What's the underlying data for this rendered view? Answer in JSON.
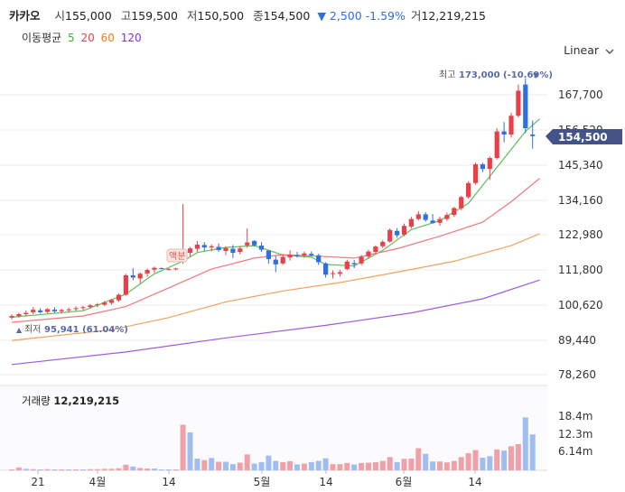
{
  "header": {
    "name": "카카오",
    "open_label": "시",
    "open": "155,000",
    "high_label": "고",
    "high": "159,500",
    "low_label": "저",
    "low": "150,500",
    "close_label": "종",
    "close": "154,500",
    "change": "▼ 2,500",
    "change_pct": "-1.59%",
    "volume_label": "거",
    "volume": "12,219,215"
  },
  "moving_avg": {
    "label": "이동평균",
    "items": [
      {
        "label": "5",
        "color": "#3cae3c"
      },
      {
        "label": "20",
        "color": "#e8404a"
      },
      {
        "label": "60",
        "color": "#ef7d22"
      },
      {
        "label": "120",
        "color": "#8a2be2"
      }
    ]
  },
  "scale_toggle": {
    "label": "Linear",
    "icon": "chevron-down-icon"
  },
  "price_axis": {
    "ticks": [
      "167,700",
      "156,520",
      "145,340",
      "134,160",
      "122,980",
      "111,800",
      "100,620",
      "89,440",
      "78,260"
    ]
  },
  "current_price_tag": "154,500",
  "max_annotation": {
    "label": "최고",
    "value": "173,000 (-10.69%)"
  },
  "min_annotation": {
    "label": "최저",
    "value": "95,941 (61.04%)"
  },
  "badge": {
    "text": "액분"
  },
  "volume_panel": {
    "label": "거래량",
    "value": "12,219,215",
    "ticks": [
      "18.4m",
      "12.3m",
      "6.14m"
    ]
  },
  "x_axis": {
    "ticks": [
      "21",
      "4월",
      "14",
      "5월",
      "14",
      "6월",
      "14"
    ]
  },
  "colors": {
    "up": "#e8404a",
    "down": "#2f6fde",
    "up_vol": "#f0a0a8",
    "down_vol": "#9fbdf0"
  },
  "chart_data": {
    "type": "candlestick",
    "price_range": [
      78260,
      173000
    ],
    "candles": [
      [
        96500,
        97600,
        95941,
        97000
      ],
      [
        97000,
        98000,
        96500,
        97600
      ],
      [
        97600,
        98800,
        97000,
        98000
      ],
      [
        98200,
        99800,
        97600,
        99000
      ],
      [
        98800,
        99500,
        97800,
        98200
      ],
      [
        98300,
        99500,
        97900,
        99200
      ],
      [
        99000,
        99800,
        98000,
        98500
      ],
      [
        98500,
        99300,
        97800,
        98900
      ],
      [
        98900,
        99700,
        98100,
        99100
      ],
      [
        99200,
        100100,
        98600,
        99500
      ],
      [
        99500,
        100300,
        98900,
        99800
      ],
      [
        99900,
        100800,
        99300,
        100400
      ],
      [
        100400,
        101200,
        99800,
        100700
      ],
      [
        100600,
        101800,
        100200,
        101300
      ],
      [
        101200,
        102500,
        100600,
        102100
      ],
      [
        102000,
        104200,
        101600,
        103800
      ],
      [
        103800,
        110500,
        103500,
        110000
      ],
      [
        110000,
        112300,
        108400,
        109300
      ],
      [
        109000,
        111000,
        107500,
        110500
      ],
      [
        110600,
        112200,
        109500,
        111700
      ],
      [
        111800,
        112800,
        110800,
        112400
      ],
      [
        112300,
        112500,
        111900,
        112100
      ],
      [
        112000,
        112300,
        111600,
        112000
      ],
      [
        112000,
        112400,
        111600,
        112200
      ],
      [
        115500,
        132800,
        113700,
        117500
      ],
      [
        117200,
        119100,
        116000,
        118600
      ],
      [
        118500,
        121000,
        117500,
        119800
      ],
      [
        119700,
        120600,
        117800,
        118900
      ],
      [
        118900,
        119900,
        117700,
        119300
      ],
      [
        119100,
        120200,
        117500,
        118100
      ],
      [
        117800,
        119300,
        116500,
        118700
      ],
      [
        118500,
        119700,
        115500,
        117200
      ],
      [
        117500,
        119400,
        116700,
        118600
      ],
      [
        119600,
        125000,
        118800,
        120500
      ],
      [
        121000,
        121200,
        119200,
        119600
      ],
      [
        119500,
        120600,
        117500,
        118200
      ],
      [
        117900,
        118200,
        113700,
        115200
      ],
      [
        115000,
        116200,
        111000,
        113500
      ],
      [
        113800,
        116800,
        113300,
        115900
      ],
      [
        115700,
        118000,
        114700,
        116600
      ],
      [
        116500,
        117500,
        115700,
        116100
      ],
      [
        116400,
        117600,
        115600,
        117000
      ],
      [
        116900,
        117600,
        116100,
        116400
      ],
      [
        116400,
        116900,
        113300,
        114200
      ],
      [
        113800,
        114200,
        109300,
        110200
      ],
      [
        110400,
        111600,
        109000,
        110700
      ],
      [
        110500,
        111800,
        109600,
        111000
      ],
      [
        112000,
        115000,
        111700,
        114400
      ],
      [
        113900,
        114900,
        112300,
        113500
      ],
      [
        113800,
        116500,
        113200,
        115900
      ],
      [
        116000,
        118200,
        115300,
        117600
      ],
      [
        117500,
        119600,
        116900,
        119200
      ],
      [
        119300,
        121300,
        118700,
        120700
      ],
      [
        120800,
        125000,
        120500,
        124500
      ],
      [
        124200,
        125100,
        122000,
        122800
      ],
      [
        123000,
        126500,
        122500,
        125800
      ],
      [
        125600,
        128700,
        125000,
        128000
      ],
      [
        128000,
        130500,
        127500,
        129500
      ],
      [
        129500,
        130200,
        127100,
        127700
      ],
      [
        127500,
        129600,
        126500,
        126700
      ],
      [
        126800,
        128800,
        125800,
        128000
      ],
      [
        128000,
        130000,
        127400,
        129300
      ],
      [
        129300,
        131900,
        128600,
        131500
      ],
      [
        131400,
        135400,
        130800,
        135000
      ],
      [
        135000,
        140000,
        134500,
        139500
      ],
      [
        139500,
        146000,
        139000,
        145500
      ],
      [
        145500,
        146000,
        143000,
        144000
      ],
      [
        144000,
        148000,
        140500,
        147500
      ],
      [
        147500,
        157000,
        147000,
        156000
      ],
      [
        156000,
        159000,
        152500,
        155000
      ],
      [
        155000,
        162000,
        154000,
        161000
      ],
      [
        161000,
        171000,
        160500,
        169000
      ],
      [
        171000,
        173000,
        155500,
        157000
      ],
      [
        155000,
        159500,
        150500,
        154500
      ]
    ],
    "volume": [
      [
        0.3,
        1
      ],
      [
        1.0,
        1
      ],
      [
        0.5,
        0
      ],
      [
        0.4,
        1
      ],
      [
        0.3,
        0
      ],
      [
        0.4,
        1
      ],
      [
        0.3,
        0
      ],
      [
        0.3,
        1
      ],
      [
        0.3,
        0
      ],
      [
        0.3,
        1
      ],
      [
        0.3,
        0
      ],
      [
        0.4,
        1
      ],
      [
        0.4,
        1
      ],
      [
        0.5,
        1
      ],
      [
        0.5,
        1
      ],
      [
        0.7,
        1
      ],
      [
        1.9,
        1
      ],
      [
        1.3,
        0
      ],
      [
        0.8,
        1
      ],
      [
        0.6,
        1
      ],
      [
        0.6,
        0
      ],
      [
        0.3,
        0
      ],
      [
        0.2,
        0
      ],
      [
        0.2,
        1
      ],
      [
        15.5,
        1
      ],
      [
        12.9,
        0
      ],
      [
        4.0,
        0
      ],
      [
        3.5,
        1
      ],
      [
        4.2,
        0
      ],
      [
        2.9,
        1
      ],
      [
        2.9,
        0
      ],
      [
        2.1,
        0
      ],
      [
        2.6,
        1
      ],
      [
        5.4,
        1
      ],
      [
        2.3,
        0
      ],
      [
        2.8,
        0
      ],
      [
        5.0,
        0
      ],
      [
        3.2,
        0
      ],
      [
        2.8,
        1
      ],
      [
        3.1,
        1
      ],
      [
        2.0,
        0
      ],
      [
        2.3,
        1
      ],
      [
        2.8,
        0
      ],
      [
        3.2,
        0
      ],
      [
        4.1,
        0
      ],
      [
        2.1,
        1
      ],
      [
        2.1,
        1
      ],
      [
        2.5,
        1
      ],
      [
        2.0,
        0
      ],
      [
        2.5,
        1
      ],
      [
        2.6,
        1
      ],
      [
        2.8,
        1
      ],
      [
        3.2,
        1
      ],
      [
        4.5,
        1
      ],
      [
        2.8,
        0
      ],
      [
        3.9,
        1
      ],
      [
        4.0,
        1
      ],
      [
        7.5,
        1
      ],
      [
        5.6,
        0
      ],
      [
        3.0,
        0
      ],
      [
        3.0,
        1
      ],
      [
        2.7,
        1
      ],
      [
        3.2,
        1
      ],
      [
        4.5,
        1
      ],
      [
        5.8,
        1
      ],
      [
        6.9,
        1
      ],
      [
        4.3,
        0
      ],
      [
        4.8,
        0
      ],
      [
        7.1,
        1
      ],
      [
        6.7,
        0
      ],
      [
        8.2,
        1
      ],
      [
        8.9,
        1
      ],
      [
        18.0,
        0
      ],
      [
        12.2,
        0
      ]
    ],
    "ma_lines": {
      "ma5": [
        [
          0,
          96600
        ],
        [
          10,
          98700
        ],
        [
          16,
          104000
        ],
        [
          20,
          110500
        ],
        [
          24,
          114500
        ],
        [
          26,
          117300
        ],
        [
          30,
          118900
        ],
        [
          34,
          119500
        ],
        [
          38,
          116500
        ],
        [
          42,
          115800
        ],
        [
          44,
          113500
        ],
        [
          48,
          113000
        ],
        [
          52,
          118000
        ],
        [
          56,
          124600
        ],
        [
          60,
          127500
        ],
        [
          64,
          133000
        ],
        [
          68,
          144500
        ],
        [
          72,
          156000
        ],
        [
          74,
          160000
        ]
      ],
      "ma20": [
        [
          0,
          95000
        ],
        [
          10,
          97000
        ],
        [
          16,
          100000
        ],
        [
          22,
          106000
        ],
        [
          28,
          112000
        ],
        [
          34,
          115500
        ],
        [
          38,
          116600
        ],
        [
          44,
          116000
        ],
        [
          48,
          115500
        ],
        [
          54,
          118500
        ],
        [
          60,
          122500
        ],
        [
          66,
          127000
        ],
        [
          70,
          133500
        ],
        [
          74,
          141000
        ]
      ],
      "ma60": [
        [
          0,
          89200
        ],
        [
          14,
          92600
        ],
        [
          22,
          96500
        ],
        [
          30,
          101500
        ],
        [
          38,
          105000
        ],
        [
          46,
          107700
        ],
        [
          54,
          111000
        ],
        [
          62,
          114500
        ],
        [
          70,
          119500
        ],
        [
          74,
          123300
        ]
      ],
      "ma120": [
        [
          0,
          81500
        ],
        [
          16,
          85500
        ],
        [
          30,
          90000
        ],
        [
          44,
          94000
        ],
        [
          56,
          98000
        ],
        [
          66,
          102500
        ],
        [
          74,
          108500
        ]
      ]
    }
  }
}
